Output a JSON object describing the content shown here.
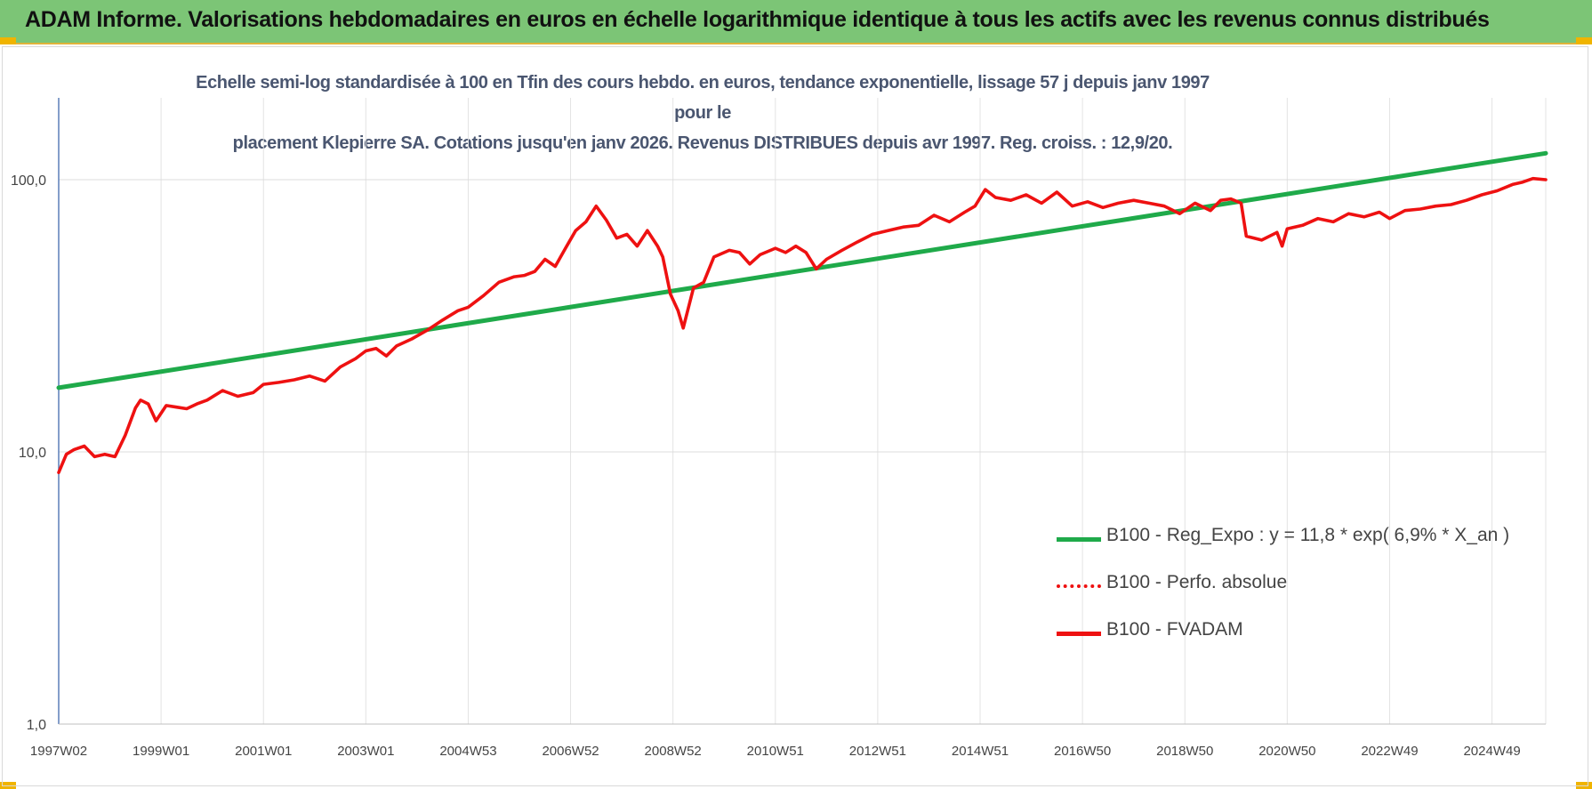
{
  "header": {
    "title": "ADAM Informe. Valorisations hebdomadaires en euros en échelle logarithmique identique à tous les actifs avec les revenus connus distribués"
  },
  "chart_data": {
    "type": "line",
    "title": "",
    "subtitle_lines": [
      "Echelle semi-log standardisée à 100 en Tfin des cours hebdo. en euros, tendance exponentielle, lissage 57 j depuis janv 1997 pour le",
      "placement Klepierre SA.  Cotations jusqu'en janv 2026.  Revenus DISTRIBUES depuis avr 1997. Reg. croiss. : 12,9/20."
    ],
    "xlabel": "",
    "ylabel": "",
    "y_scale": "log",
    "ylim": [
      1,
      200
    ],
    "y_ticks": [
      {
        "value": 1,
        "label": "1,0"
      },
      {
        "value": 10,
        "label": "10,0"
      },
      {
        "value": 100,
        "label": "100,0"
      }
    ],
    "x_range": [
      1997.0,
      2026.05
    ],
    "x_ticks": [
      {
        "value": 1997.0,
        "label": "1997W02"
      },
      {
        "value": 1999.0,
        "label": "1999W01"
      },
      {
        "value": 2001.0,
        "label": "2001W01"
      },
      {
        "value": 2003.0,
        "label": "2003W01"
      },
      {
        "value": 2005.0,
        "label": "2004W53"
      },
      {
        "value": 2007.0,
        "label": "2006W52"
      },
      {
        "value": 2009.0,
        "label": "2008W52"
      },
      {
        "value": 2011.0,
        "label": "2010W51"
      },
      {
        "value": 2013.0,
        "label": "2012W51"
      },
      {
        "value": 2015.0,
        "label": "2014W51"
      },
      {
        "value": 2017.0,
        "label": "2016W50"
      },
      {
        "value": 2019.0,
        "label": "2018W50"
      },
      {
        "value": 2021.0,
        "label": "2020W50"
      },
      {
        "value": 2023.0,
        "label": "2022W49"
      },
      {
        "value": 2025.0,
        "label": "2024W49"
      }
    ],
    "grid": {
      "horizontal": true,
      "vertical": true
    },
    "legend_position": "bottom-right",
    "series": [
      {
        "name": "B100 - Reg_Expo : y = 11,8 * exp( 6,9% *  X_an )",
        "color": "#1faa4a",
        "style": "solid",
        "x": [
          1997.0,
          2026.05
        ],
        "y": [
          17.2,
          125.0
        ]
      },
      {
        "name": "B100 - Perfo. absolue",
        "color": "#ee1111",
        "style": "dotted",
        "x": [],
        "y": []
      },
      {
        "name": "B100 - FVADAM",
        "color": "#ee1111",
        "style": "solid",
        "x": [
          1997.0,
          1997.15,
          1997.3,
          1997.5,
          1997.7,
          1997.9,
          1998.1,
          1998.3,
          1998.5,
          1998.6,
          1998.75,
          1998.9,
          1999.1,
          1999.3,
          1999.5,
          1999.7,
          1999.9,
          2000.2,
          2000.5,
          2000.8,
          2001.0,
          2001.3,
          2001.6,
          2001.9,
          2002.2,
          2002.5,
          2002.8,
          2003.0,
          2003.2,
          2003.4,
          2003.6,
          2003.9,
          2004.2,
          2004.5,
          2004.8,
          2005.0,
          2005.3,
          2005.6,
          2005.9,
          2006.1,
          2006.3,
          2006.5,
          2006.7,
          2006.9,
          2007.1,
          2007.3,
          2007.5,
          2007.7,
          2007.9,
          2008.1,
          2008.3,
          2008.5,
          2008.7,
          2008.8,
          2008.95,
          2009.1,
          2009.2,
          2009.4,
          2009.6,
          2009.8,
          2010.1,
          2010.3,
          2010.5,
          2010.7,
          2011.0,
          2011.2,
          2011.4,
          2011.6,
          2011.8,
          2012.0,
          2012.3,
          2012.6,
          2012.9,
          2013.2,
          2013.5,
          2013.8,
          2014.1,
          2014.4,
          2014.7,
          2014.9,
          2015.1,
          2015.3,
          2015.6,
          2015.9,
          2016.2,
          2016.5,
          2016.8,
          2017.1,
          2017.4,
          2017.7,
          2018.0,
          2018.3,
          2018.6,
          2018.9,
          2019.2,
          2019.5,
          2019.7,
          2019.9,
          2020.1,
          2020.2,
          2020.5,
          2020.8,
          2020.9,
          2021.0,
          2021.3,
          2021.6,
          2021.9,
          2022.2,
          2022.5,
          2022.8,
          2023.0,
          2023.3,
          2023.6,
          2023.9,
          2024.2,
          2024.5,
          2024.8,
          2025.1,
          2025.4,
          2025.6,
          2025.8,
          2026.05
        ],
        "y": [
          8.4,
          9.8,
          10.2,
          10.5,
          9.6,
          9.8,
          9.6,
          11.5,
          14.5,
          15.5,
          15.0,
          13.0,
          14.8,
          14.6,
          14.4,
          15.0,
          15.5,
          16.8,
          16.0,
          16.5,
          17.7,
          18.0,
          18.4,
          19.0,
          18.2,
          20.5,
          22.0,
          23.5,
          24.0,
          22.5,
          24.5,
          26.0,
          28.0,
          30.5,
          33.0,
          34.0,
          37.5,
          42.0,
          44.0,
          44.5,
          46.0,
          51.0,
          48.0,
          56.0,
          65.0,
          70.0,
          80.0,
          71.0,
          61.0,
          63.0,
          57.0,
          65.0,
          57.0,
          52.0,
          38.0,
          33.0,
          28.5,
          40.0,
          42.0,
          52.0,
          55.0,
          54.0,
          49.0,
          53.0,
          56.0,
          54.0,
          57.0,
          54.0,
          47.0,
          51.0,
          55.0,
          59.0,
          63.0,
          65.0,
          67.0,
          68.0,
          74.0,
          70.0,
          76.0,
          80.0,
          92.0,
          86.0,
          84.0,
          88.0,
          82.0,
          90.0,
          80.0,
          83.0,
          79.0,
          82.0,
          84.0,
          82.0,
          80.0,
          75.0,
          82.0,
          77.0,
          84.0,
          85.0,
          82.0,
          62.0,
          60.0,
          64.0,
          57.0,
          66.0,
          68.0,
          72.0,
          70.0,
          75.0,
          73.0,
          76.0,
          72.0,
          77.0,
          78.0,
          80.0,
          81.0,
          84.0,
          88.0,
          91.0,
          96.0,
          98.0,
          101.0,
          100.0
        ]
      }
    ]
  }
}
